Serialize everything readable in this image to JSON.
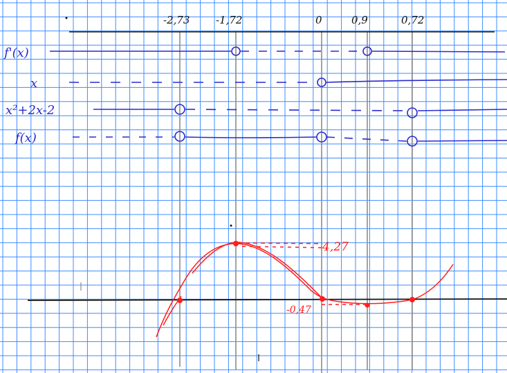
{
  "colors": {
    "paper": "#ffffff",
    "grid": "#3c8cff",
    "blue_ink": "#2a2ad0",
    "black_ink": "#111111",
    "red_ink": "#ff1e1e",
    "pencil": "#8c8c8c"
  },
  "header": {
    "x_marks": [
      "-2,73",
      "-1,72",
      "0",
      "0,9",
      "0,72"
    ]
  },
  "sign_table": {
    "rows": [
      {
        "label": "f'(x)"
      },
      {
        "label": "x"
      },
      {
        "label": "x²+2x-2"
      },
      {
        "label": "f(x)"
      }
    ]
  },
  "graph": {
    "max_label": "4,27",
    "min_label": "-0,47"
  }
}
